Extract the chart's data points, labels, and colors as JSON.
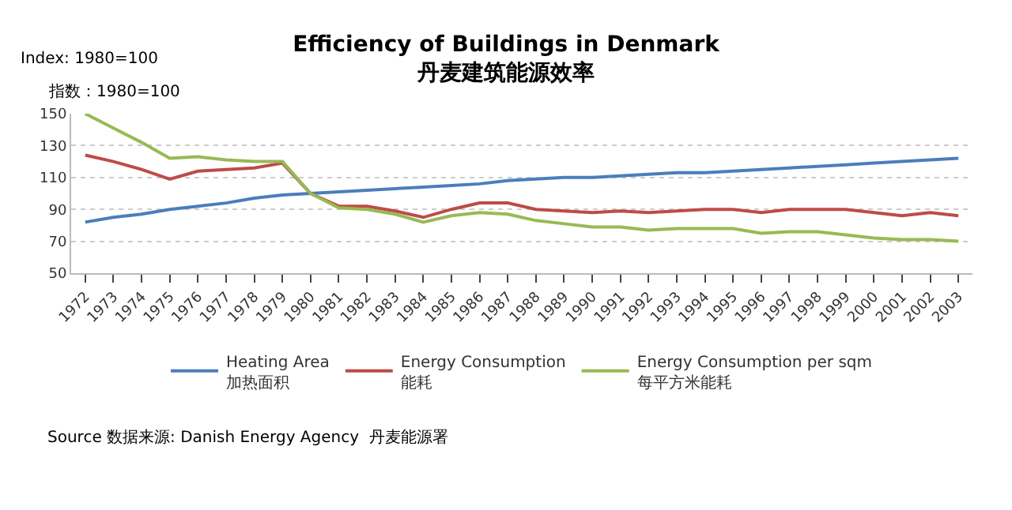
{
  "chart_data": {
    "type": "line",
    "title": "Efficiency of Buildings in Denmark",
    "subtitle": "丹麦建筑能源效率",
    "categories": [
      "1972",
      "1973",
      "1974",
      "1975",
      "1976",
      "1977",
      "1978",
      "1979",
      "1980",
      "1981",
      "1982",
      "1983",
      "1984",
      "1985",
      "1986",
      "1987",
      "1988",
      "1989",
      "1990",
      "1991",
      "1992",
      "1993",
      "1994",
      "1995",
      "1996",
      "1997",
      "1998",
      "1999",
      "2000",
      "2001",
      "2002",
      "2003"
    ],
    "series": [
      {
        "name": "Heating Area\n加热面积",
        "color": "#4a7ebb",
        "values": [
          82,
          85,
          87,
          90,
          92,
          94,
          97,
          99,
          100,
          101,
          102,
          103,
          104,
          105,
          106,
          108,
          109,
          110,
          110,
          111,
          112,
          113,
          113,
          114,
          115,
          116,
          117,
          118,
          119,
          120,
          121,
          122
        ]
      },
      {
        "name": "Energy Consumption\n能耗",
        "color": "#be4b48",
        "values": [
          124,
          120,
          115,
          109,
          114,
          115,
          116,
          119,
          100,
          92,
          92,
          89,
          85,
          90,
          94,
          94,
          90,
          89,
          88,
          89,
          88,
          89,
          90,
          90,
          88,
          90,
          90,
          90,
          88,
          86,
          88,
          86
        ]
      },
      {
        "name": "Energy Consumption per sqm\n每平方米能耗",
        "color": "#98b954",
        "values": [
          150,
          141,
          132,
          122,
          123,
          121,
          120,
          120,
          100,
          91,
          90,
          87,
          82,
          86,
          88,
          87,
          83,
          81,
          79,
          79,
          77,
          78,
          78,
          78,
          75,
          76,
          76,
          74,
          72,
          71,
          71,
          70
        ]
      }
    ],
    "ylim": [
      50,
      150
    ],
    "yticks": [
      50,
      70,
      90,
      110,
      130,
      150
    ],
    "grid": "y",
    "legend": "bottom",
    "marker": "none",
    "line_style": "solid",
    "annotations": [
      "Index: 1980=100",
      "指数：1980=100",
      "Source 数据来源: Danish Energy Agency  丹麦能源署"
    ]
  }
}
